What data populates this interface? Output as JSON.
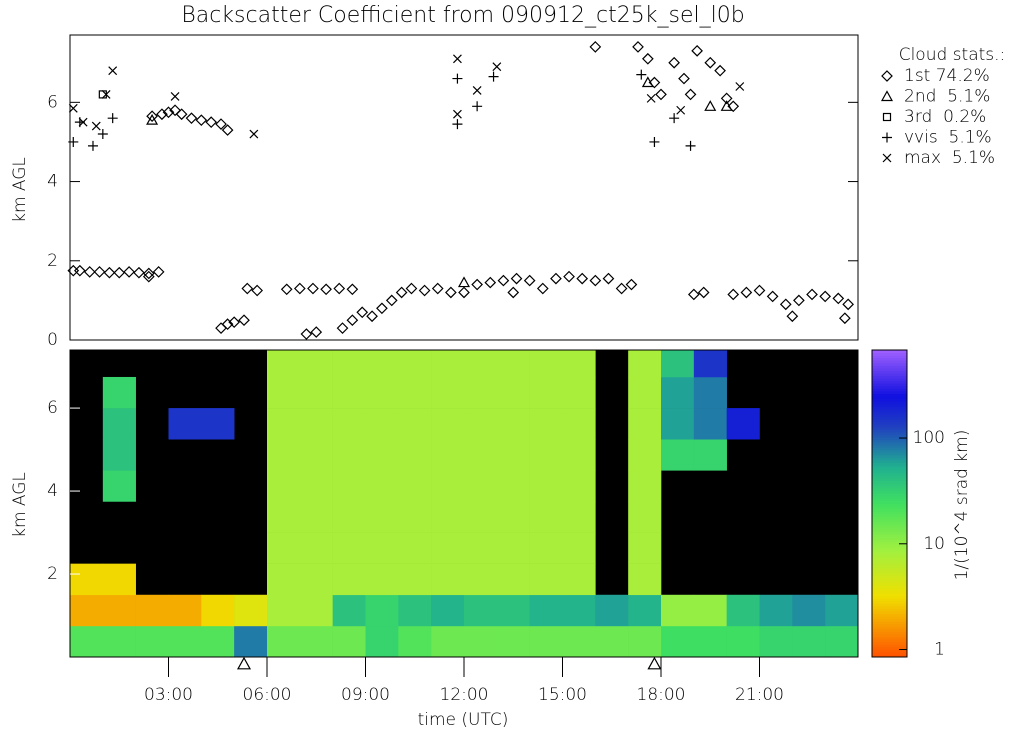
{
  "chart_data": [
    {
      "type": "scatter",
      "title": "Backscatter Coefficient from 090912_ct25k_sel_l0b",
      "ylabel": "km AGL",
      "xlim": [
        0,
        24
      ],
      "ylim": [
        0,
        7.7
      ],
      "yticks": [
        0,
        2,
        4,
        6
      ],
      "legend_title": "Cloud stats.:",
      "legend": "right",
      "series": [
        {
          "name": "1st 74.2%",
          "marker": "diamond",
          "color": "#000000",
          "x": [
            0.1,
            0.3,
            0.6,
            0.9,
            1.2,
            1.5,
            1.8,
            2.1,
            2.4,
            2.7,
            2.4,
            2.5,
            2.8,
            3.0,
            3.2,
            3.4,
            3.7,
            4.0,
            4.3,
            4.6,
            4.8,
            4.6,
            4.8,
            5.0,
            5.3,
            5.4,
            5.7,
            6.6,
            7.0,
            7.4,
            7.8,
            8.2,
            8.6,
            7.2,
            7.5,
            8.3,
            8.6,
            8.9,
            9.2,
            9.5,
            9.8,
            10.1,
            10.4,
            10.8,
            11.2,
            11.6,
            12.0,
            12.4,
            12.8,
            13.2,
            13.6,
            14.0,
            14.4,
            14.8,
            15.2,
            15.6,
            16.0,
            16.4,
            16.8,
            17.1,
            13.5,
            16.0,
            17.3,
            17.6,
            17.8,
            18.0,
            18.4,
            18.7,
            18.9,
            19.1,
            19.5,
            19.8,
            20.0,
            20.2,
            19.0,
            19.3,
            20.2,
            20.6,
            21.0,
            21.4,
            21.8,
            22.2,
            22.6,
            23.0,
            23.4,
            23.7,
            23.6,
            22.0
          ],
          "values": [
            1.75,
            1.75,
            1.72,
            1.72,
            1.7,
            1.7,
            1.72,
            1.7,
            1.68,
            1.72,
            1.6,
            5.65,
            5.7,
            5.75,
            5.8,
            5.7,
            5.6,
            5.55,
            5.5,
            5.45,
            5.3,
            0.3,
            0.4,
            0.45,
            0.5,
            1.3,
            1.25,
            1.28,
            1.3,
            1.3,
            1.28,
            1.3,
            1.28,
            0.15,
            0.2,
            0.3,
            0.5,
            0.7,
            0.6,
            0.8,
            1.0,
            1.2,
            1.3,
            1.25,
            1.3,
            1.2,
            1.2,
            1.4,
            1.45,
            1.5,
            1.55,
            1.5,
            1.3,
            1.55,
            1.6,
            1.55,
            1.5,
            1.55,
            1.3,
            1.4,
            1.2,
            7.4,
            7.4,
            7.1,
            6.5,
            6.2,
            7.0,
            6.6,
            6.2,
            7.3,
            7.0,
            6.8,
            6.1,
            5.9,
            1.15,
            1.2,
            1.15,
            1.2,
            1.25,
            1.1,
            0.9,
            1.0,
            1.15,
            1.1,
            1.05,
            0.9,
            0.55,
            0.6
          ]
        },
        {
          "name": "2nd  5.1%",
          "marker": "triangle",
          "color": "#000000",
          "x": [
            2.5,
            12.0,
            17.6,
            19.5,
            20.0
          ],
          "values": [
            5.55,
            1.45,
            6.5,
            5.9,
            5.9
          ]
        },
        {
          "name": "3rd  0.2%",
          "marker": "square",
          "color": "#000000",
          "x": [
            1.0
          ],
          "values": [
            6.2
          ]
        },
        {
          "name": "vvis  5.1%",
          "marker": "plus",
          "color": "#000000",
          "x": [
            0.1,
            0.3,
            0.7,
            1.0,
            1.3,
            11.8,
            11.8,
            12.4,
            12.9,
            17.4,
            17.8,
            18.4,
            18.9
          ],
          "values": [
            5.0,
            5.5,
            4.9,
            5.2,
            5.6,
            5.45,
            6.6,
            5.9,
            6.65,
            6.7,
            5.0,
            5.6,
            4.9
          ]
        },
        {
          "name": "max  5.1%",
          "marker": "x",
          "color": "#000000",
          "x": [
            0.1,
            0.4,
            0.8,
            1.1,
            1.3,
            3.2,
            5.6,
            11.8,
            11.8,
            12.4,
            13.0,
            17.7,
            18.6,
            20.4
          ],
          "values": [
            5.85,
            5.5,
            5.4,
            6.2,
            6.8,
            6.15,
            5.2,
            7.1,
            5.7,
            6.3,
            6.9,
            6.1,
            5.8,
            6.4
          ]
        }
      ]
    },
    {
      "type": "heatmap",
      "ylabel": "km AGL",
      "xlabel": "time (UTC)",
      "xlim": [
        0,
        24
      ],
      "ylim": [
        0,
        7.4
      ],
      "xticks": [
        {
          "value": 3,
          "label": "03:00"
        },
        {
          "value": 6,
          "label": "06:00"
        },
        {
          "value": 9,
          "label": "09:00"
        },
        {
          "value": 12,
          "label": "12:00"
        },
        {
          "value": 15,
          "label": "15:00"
        },
        {
          "value": 18,
          "label": "18:00"
        },
        {
          "value": 21,
          "label": "21:00"
        }
      ],
      "yticks": [
        2,
        4,
        6
      ],
      "x_edges": [
        0,
        1,
        2,
        3,
        4,
        5,
        6,
        7,
        8,
        9,
        10,
        11,
        12,
        13,
        14,
        15,
        16,
        17,
        18,
        19,
        20,
        21,
        22,
        23,
        24
      ],
      "y_edges": [
        0,
        0.75,
        1.5,
        2.25,
        3,
        3.75,
        4.5,
        5.25,
        6,
        6.75,
        7.4
      ],
      "z": [
        [
          20,
          20,
          20,
          20,
          20,
          80,
          15,
          15,
          15,
          30,
          20,
          15,
          15,
          15,
          15,
          15,
          15,
          15,
          25,
          25,
          25,
          30,
          30,
          30
        ],
        [
          2,
          2,
          2,
          2,
          3,
          4,
          8,
          8,
          40,
          30,
          40,
          50,
          40,
          40,
          50,
          50,
          60,
          50,
          10,
          10,
          40,
          60,
          70,
          60
        ],
        [
          3,
          3,
          null,
          null,
          null,
          null,
          8,
          8,
          8,
          8,
          8,
          8,
          8,
          8,
          8,
          8,
          null,
          8,
          null,
          null,
          null,
          null,
          null,
          null
        ],
        [
          null,
          null,
          null,
          null,
          null,
          null,
          8,
          8,
          8,
          8,
          8,
          8,
          8,
          8,
          8,
          8,
          null,
          8,
          null,
          null,
          null,
          null,
          null,
          null
        ],
        [
          null,
          null,
          null,
          null,
          null,
          null,
          8,
          8,
          8,
          8,
          8,
          8,
          8,
          8,
          8,
          8,
          null,
          8,
          null,
          null,
          null,
          null,
          null,
          null
        ],
        [
          null,
          30,
          null,
          null,
          null,
          null,
          8,
          8,
          8,
          8,
          8,
          8,
          8,
          8,
          8,
          8,
          null,
          8,
          null,
          null,
          null,
          null,
          null,
          null
        ],
        [
          null,
          40,
          null,
          null,
          null,
          null,
          8,
          8,
          8,
          8,
          8,
          8,
          8,
          8,
          8,
          8,
          null,
          8,
          30,
          30,
          null,
          null,
          null,
          null
        ],
        [
          null,
          40,
          null,
          150,
          150,
          null,
          8,
          8,
          8,
          8,
          8,
          8,
          8,
          8,
          8,
          8,
          null,
          8,
          60,
          80,
          200,
          null,
          null,
          null
        ],
        [
          null,
          30,
          null,
          null,
          null,
          null,
          8,
          8,
          8,
          8,
          8,
          8,
          8,
          8,
          8,
          8,
          null,
          8,
          60,
          80,
          null,
          null,
          null,
          null
        ],
        [
          null,
          null,
          null,
          null,
          null,
          null,
          8,
          8,
          8,
          8,
          8,
          8,
          8,
          8,
          8,
          8,
          null,
          8,
          40,
          150,
          null,
          null,
          null,
          null
        ]
      ],
      "markers_x": [
        5.3,
        17.8
      ],
      "colorbar": {
        "label": "1/(10^4 srad km)",
        "log": true,
        "lim": [
          0.85,
          680
        ],
        "ticks": [
          1,
          10,
          100
        ]
      }
    }
  ]
}
